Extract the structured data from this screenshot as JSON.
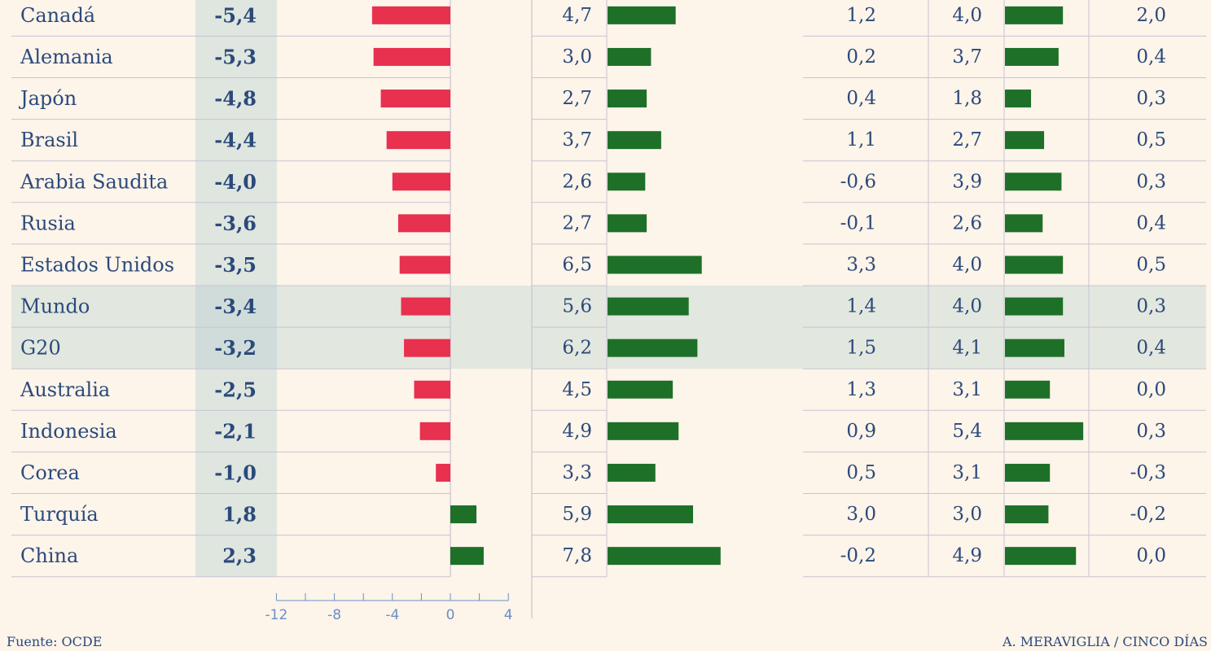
{
  "chart_data": {
    "type": "bar",
    "categories": [
      "Canadá",
      "Alemania",
      "Japón",
      "Brasil",
      "Arabia Saudita",
      "Rusia",
      "Estados Unidos",
      "Mundo",
      "G20",
      "Australia",
      "Indonesia",
      "Corea",
      "Turquía",
      "China"
    ],
    "highlighted": [
      "Mundo",
      "G20"
    ],
    "series": [
      {
        "values": [
          -5.4,
          -5.3,
          -4.8,
          -4.4,
          -4.0,
          -3.6,
          -3.5,
          -3.4,
          -3.2,
          -2.5,
          -2.1,
          -1.0,
          1.8,
          2.3
        ],
        "labels": [
          "-5,4",
          "-5,3",
          "-4,8",
          "-4,4",
          "-4,0",
          "-3,6",
          "-3,5",
          "-3,4",
          "-3,2",
          "-2,5",
          "-2,1",
          "-1,0",
          "1,8",
          "2,3"
        ],
        "color": "#e8304f",
        "positive_color": "#1e7028",
        "axis": {
          "xlim": [
            -12,
            4
          ],
          "ticks": [
            -12,
            -8,
            -4,
            0,
            4
          ],
          "tick_labels": [
            "-12",
            "-8",
            "-4",
            "0",
            "4"
          ]
        }
      },
      {
        "values": [
          4.7,
          3.0,
          2.7,
          3.7,
          2.6,
          2.7,
          6.5,
          5.6,
          6.2,
          4.5,
          4.9,
          3.3,
          5.9,
          7.8
        ],
        "labels": [
          "4,7",
          "3,0",
          "2,7",
          "3,7",
          "2,6",
          "2,7",
          "6,5",
          "5,6",
          "6,2",
          "4,5",
          "4,9",
          "3,3",
          "5,9",
          "7,8"
        ],
        "color": "#1e7028",
        "xlim": [
          0,
          8
        ]
      },
      {
        "values": [
          1.2,
          0.2,
          0.4,
          1.1,
          -0.6,
          -0.1,
          3.3,
          1.4,
          1.5,
          1.3,
          0.9,
          0.5,
          3.0,
          -0.2
        ],
        "labels": [
          "1,2",
          "0,2",
          "0,4",
          "1,1",
          "-0,6",
          "-0,1",
          "3,3",
          "1,4",
          "1,5",
          "1,3",
          "0,9",
          "0,5",
          "3,0",
          "-0,2"
        ]
      },
      {
        "values": [
          4.0,
          3.7,
          1.8,
          2.7,
          3.9,
          2.6,
          4.0,
          4.0,
          4.1,
          3.1,
          5.4,
          3.1,
          3.0,
          4.9
        ],
        "labels": [
          "4,0",
          "3,7",
          "1,8",
          "2,7",
          "3,9",
          "2,6",
          "4,0",
          "4,0",
          "4,1",
          "3,1",
          "5,4",
          "3,1",
          "3,0",
          "4,9"
        ],
        "color": "#1e7028",
        "xlim": [
          0,
          5.4
        ]
      },
      {
        "values": [
          2.0,
          0.4,
          0.3,
          0.5,
          0.3,
          0.4,
          0.5,
          0.3,
          0.4,
          0.0,
          0.3,
          -0.3,
          -0.2,
          0.0
        ],
        "labels": [
          "2,0",
          "0,4",
          "0,3",
          "0,5",
          "0,3",
          "0,4",
          "0,5",
          "0,3",
          "0,4",
          "0,0",
          "0,3",
          "-0,3",
          "-0,2",
          "0,0"
        ]
      }
    ],
    "grid": true
  },
  "colors": {
    "background": "#fdf4ea",
    "text": "#2b4a7a",
    "highlight_band": "#e2e7df",
    "first_col_band": "#dfe5df",
    "rule": "#c9c3d3"
  },
  "footer": {
    "source": "Fuente: OCDE",
    "credit": "A. MERAVIGLIA / CINCO DÍAS"
  }
}
